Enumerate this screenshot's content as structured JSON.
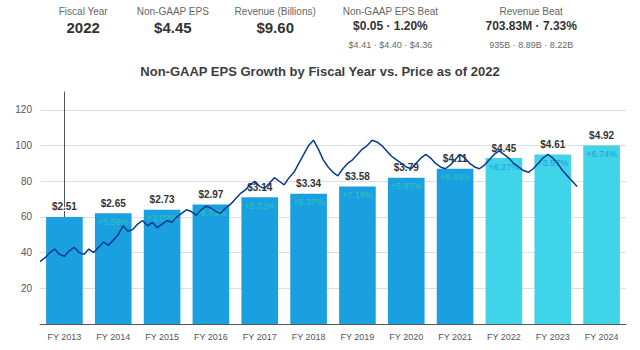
{
  "chart_data": {
    "type": "bar",
    "title": "Non-GAAP EPS Growth by Fiscal Year vs. Price as of 2022",
    "header": [
      {
        "label": "Fiscal Year",
        "value": "2022"
      },
      {
        "label": "Non-GAAP EPS",
        "value": "$4.45"
      },
      {
        "label": "Revenue (Billions)",
        "value": "$9.60"
      },
      {
        "label": "Non-GAAP EPS Beat",
        "value": "$0.05 · 1.20%",
        "sub": "$4.41 · $4.40 · $4.36"
      },
      {
        "label": "Revenue Beat",
        "value": "703.83M · 7.33%",
        "sub": "935B · 8.89B · 8.22B"
      }
    ],
    "categories": [
      "FY 2013",
      "FY 2014",
      "FY 2015",
      "FY 2016",
      "FY 2017",
      "FY 2018",
      "FY 2019",
      "FY 2020",
      "FY 2021",
      "FY 2022",
      "FY 2023",
      "FY 2024"
    ],
    "series": [
      {
        "type": "bar",
        "values": [
          60,
          62,
          64,
          67,
          71,
          73,
          77,
          82,
          87,
          93,
          95,
          100
        ],
        "colors": [
          "#1a9fe0",
          "#1a9fe0",
          "#1a9fe0",
          "#1a9fe0",
          "#1a9fe0",
          "#1a9fe0",
          "#1a9fe0",
          "#1a9fe0",
          "#1a9fe0",
          "#40d4e8",
          "#40d4e8",
          "#40d4e8"
        ],
        "top_labels": [
          "$2.51",
          "$2.65",
          "$2.73",
          "$2.97",
          "$3.14",
          "$3.34",
          "$3.58",
          "$3.79",
          "$4.11",
          "$4.45",
          "$4.61",
          "$4.92"
        ],
        "inner_labels": [
          null,
          "+5.58%",
          "+3.02%",
          "+8.79%",
          "+5.72%",
          "+6.37%",
          "+7.19%",
          "+5.87%",
          "+8.44%",
          "+8.27%",
          "+3.57%",
          "+6.74%"
        ],
        "inner_label_colors": [
          "#30c8b0",
          "#30c8b0",
          "#30c8b0",
          "#30c8b0",
          "#30c8b0",
          "#30c8b0",
          "#30c8b0",
          "#30c8b0",
          "#30c8b0",
          "#1a9fe0",
          "#1a9fe0",
          "#1a9fe0"
        ]
      },
      {
        "type": "line",
        "color": "#0a3a8c",
        "x": [
          -0.5,
          -0.4,
          -0.3,
          -0.2,
          -0.1,
          0,
          0.1,
          0.2,
          0.3,
          0.4,
          0.5,
          0.6,
          0.7,
          0.8,
          0.9,
          1.0,
          1.1,
          1.2,
          1.3,
          1.4,
          1.5,
          1.6,
          1.7,
          1.8,
          1.9,
          2.0,
          2.1,
          2.2,
          2.3,
          2.4,
          2.5,
          2.6,
          2.7,
          2.8,
          2.9,
          3.0,
          3.1,
          3.2,
          3.3,
          3.4,
          3.5,
          3.6,
          3.7,
          3.8,
          3.9,
          4.0,
          4.1,
          4.2,
          4.3,
          4.4,
          4.5,
          4.6,
          4.7,
          4.8,
          4.9,
          5.0,
          5.1,
          5.2,
          5.3,
          5.4,
          5.5,
          5.6,
          5.7,
          5.8,
          5.9,
          6.0,
          6.1,
          6.2,
          6.3,
          6.4,
          6.5,
          6.6,
          6.7,
          6.8,
          6.9,
          7.0,
          7.1,
          7.2,
          7.3,
          7.4,
          7.5,
          7.6,
          7.7,
          7.8,
          7.9,
          8.0,
          8.1,
          8.2,
          8.3,
          8.4,
          8.5,
          8.6,
          8.7,
          8.8,
          8.9,
          9.0,
          9.1,
          9.2,
          9.3,
          9.4,
          9.5,
          9.6,
          9.7,
          9.8,
          9.9,
          10.0,
          10.1,
          10.2,
          10.3,
          10.4,
          10.5
        ],
        "values": [
          35,
          37,
          40,
          42,
          39,
          38,
          41,
          43,
          40,
          39,
          42,
          40,
          43,
          46,
          44,
          47,
          50,
          55,
          52,
          53,
          56,
          58,
          55,
          57,
          54,
          56,
          58,
          57,
          60,
          62,
          64,
          63,
          61,
          64,
          66,
          65,
          63,
          62,
          65,
          67,
          70,
          73,
          75,
          78,
          80,
          77,
          76,
          79,
          82,
          80,
          78,
          82,
          85,
          90,
          95,
          100,
          103,
          98,
          92,
          88,
          85,
          83,
          87,
          90,
          92,
          95,
          98,
          100,
          103,
          102,
          100,
          97,
          94,
          92,
          90,
          88,
          87,
          90,
          93,
          95,
          93,
          90,
          88,
          87,
          89,
          92,
          95,
          93,
          90,
          88,
          87,
          89,
          92,
          95,
          97,
          95,
          93,
          90,
          88,
          86,
          85,
          87,
          90,
          93,
          95,
          93,
          90,
          86,
          83,
          80,
          77
        ]
      }
    ],
    "ylim": [
      0,
      130
    ],
    "yticks": [
      20,
      40,
      60,
      80,
      100,
      120
    ],
    "grid": true
  }
}
